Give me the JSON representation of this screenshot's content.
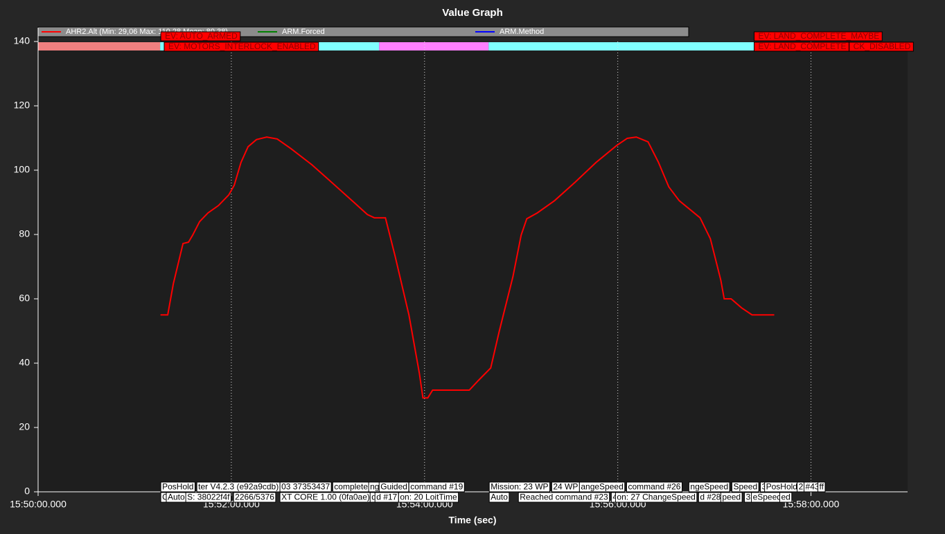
{
  "chart_data": {
    "type": "line",
    "title": "Value Graph",
    "x_label": "Time (sec)",
    "xlim": [
      0,
      540
    ],
    "xticks": [
      {
        "value": 0,
        "label": "15:50:00.000"
      },
      {
        "value": 120,
        "label": "15:52:00.000"
      },
      {
        "value": 240,
        "label": "15:54:00.000"
      },
      {
        "value": 360,
        "label": "15:56:00.000"
      },
      {
        "value": 480,
        "label": "15:58:00.000"
      }
    ],
    "ylim": [
      0,
      140
    ],
    "yticks": [
      0,
      20,
      40,
      60,
      80,
      100,
      120,
      140
    ],
    "grid": true,
    "x": [
      76,
      80.5,
      84,
      87.5,
      90,
      93.4,
      96,
      100.3,
      105.5,
      112,
      118.4,
      121.8,
      126,
      130.4,
      135.6,
      142,
      148.5,
      157,
      170,
      183,
      195.9,
      204.5,
      208.8,
      215.7,
      221.7,
      230.3,
      236.8,
      239,
      242,
      245,
      267.8,
      273.4,
      281.1,
      286.3,
      294.9,
      300,
      303.5,
      310,
      320.7,
      333.6,
      346.5,
      359.4,
      365.9,
      371.5,
      378.8,
      385.3,
      391.7,
      398.2,
      411.1,
      417.5,
      424,
      426.1,
      430.4,
      436.9,
      443.4,
      457.2
    ],
    "series": [
      {
        "name": "AHR2.Alt  (Min: 29,06 Max: 110,28 Mean: 80,38)",
        "color": "#ff0000",
        "values": [
          55,
          55,
          64.7,
          72,
          77.2,
          77.6,
          79.8,
          84,
          86.7,
          89,
          92.3,
          95.3,
          102.4,
          107.3,
          109.5,
          110.3,
          109.7,
          106.7,
          101.7,
          95.9,
          90.1,
          86.2,
          85.2,
          85.2,
          73.3,
          55,
          36.8,
          29.2,
          29.2,
          31.6,
          31.6,
          34.6,
          38.5,
          49.7,
          66.9,
          79.8,
          84.9,
          86.7,
          90.5,
          96.3,
          102.4,
          107.7,
          109.9,
          110.3,
          108.8,
          102.4,
          94.8,
          90.5,
          85.2,
          78.7,
          65.8,
          60,
          60,
          57.2,
          55,
          55
        ]
      },
      {
        "name": "ARM.Forced",
        "color": "#008000"
      },
      {
        "name": "ARM.Method",
        "color": "#0000ff"
      }
    ],
    "modes": [
      {
        "start": 0,
        "end": 75.8,
        "color": "#f08080"
      },
      {
        "start": 75.8,
        "end": 211.8,
        "color": "#80ffff"
      },
      {
        "start": 211.8,
        "end": 279.8,
        "color": "#ff80ff"
      },
      {
        "start": 279.8,
        "end": 445.5,
        "color": "#80ffff"
      }
    ],
    "events": [
      {
        "t": 76.2,
        "row": 0,
        "text": "EV: AUTO_ARMED"
      },
      {
        "t": 78.3,
        "row": 1,
        "text": "EV: MOTORS_INTERLOCK_ENABLED"
      },
      {
        "t": 444.7,
        "row": 0,
        "text": "EV: LAND_COMPLETE_MAYBE"
      },
      {
        "t": 444.7,
        "row": 1,
        "text": "EV: LAND_COMPLETE"
      },
      {
        "t": 503.7,
        "row": 1,
        "text": "CK_DISABLED"
      }
    ],
    "messages": [
      {
        "t": 76.2,
        "row": 0,
        "text": "PosHold"
      },
      {
        "t": 98.6,
        "row": 0,
        "text": "ter V4.2.3 (e92a9cdb)"
      },
      {
        "t": 150.2,
        "row": 0,
        "text": "03 37353437"
      },
      {
        "t": 183,
        "row": 0,
        "text": "complete"
      },
      {
        "t": 205.3,
        "row": 0,
        "text": "ng"
      },
      {
        "t": 211.8,
        "row": 0,
        "text": "Guided"
      },
      {
        "t": 230.3,
        "row": 0,
        "text": "command #19"
      },
      {
        "t": 280.2,
        "row": 0,
        "text": "Mission: 23 WP"
      },
      {
        "t": 319,
        "row": 0,
        "text": "24 WP"
      },
      {
        "t": 336.2,
        "row": 0,
        "text": "angeSpeed"
      },
      {
        "t": 365.5,
        "row": 0,
        "text": "command #26"
      },
      {
        "t": 404.2,
        "row": 0,
        "text": "ngeSpeed"
      },
      {
        "t": 430.9,
        "row": 0,
        "text": "Speed"
      },
      {
        "t": 448.6,
        "row": 0,
        "text": "3"
      },
      {
        "t": 451.2,
        "row": 0,
        "text": "PosHold"
      },
      {
        "t": 471.4,
        "row": 0,
        "text": "2"
      },
      {
        "t": 475.7,
        "row": 0,
        "text": "#43"
      },
      {
        "t": 484.3,
        "row": 0,
        "text": "ff"
      },
      {
        "t": 76.2,
        "row": 1,
        "text": "C"
      },
      {
        "t": 79.6,
        "row": 1,
        "text": "Auto"
      },
      {
        "t": 91.7,
        "row": 1,
        "text": "S: 38022f4f"
      },
      {
        "t": 121.4,
        "row": 1,
        "text": "2266/5376"
      },
      {
        "t": 150.2,
        "row": 1,
        "text": "XT CORE 1.00 (0fa0ae)"
      },
      {
        "t": 206.2,
        "row": 1,
        "text": "d"
      },
      {
        "t": 209.2,
        "row": 1,
        "text": "d #17"
      },
      {
        "t": 223.9,
        "row": 1,
        "text": "on: 20 LoitTime"
      },
      {
        "t": 280.2,
        "row": 1,
        "text": "Auto"
      },
      {
        "t": 298.3,
        "row": 1,
        "text": "Reached command #23"
      },
      {
        "t": 356,
        "row": 1,
        "text": "4"
      },
      {
        "t": 358.6,
        "row": 1,
        "text": "on: 27 ChangeSpeed"
      },
      {
        "t": 410.2,
        "row": 1,
        "text": "d #28"
      },
      {
        "t": 424,
        "row": 1,
        "text": "peed"
      },
      {
        "t": 438.7,
        "row": 1,
        "text": "32"
      },
      {
        "t": 443,
        "row": 1,
        "text": "eSpeed"
      },
      {
        "t": 460.6,
        "row": 1,
        "text": "ed"
      }
    ]
  }
}
